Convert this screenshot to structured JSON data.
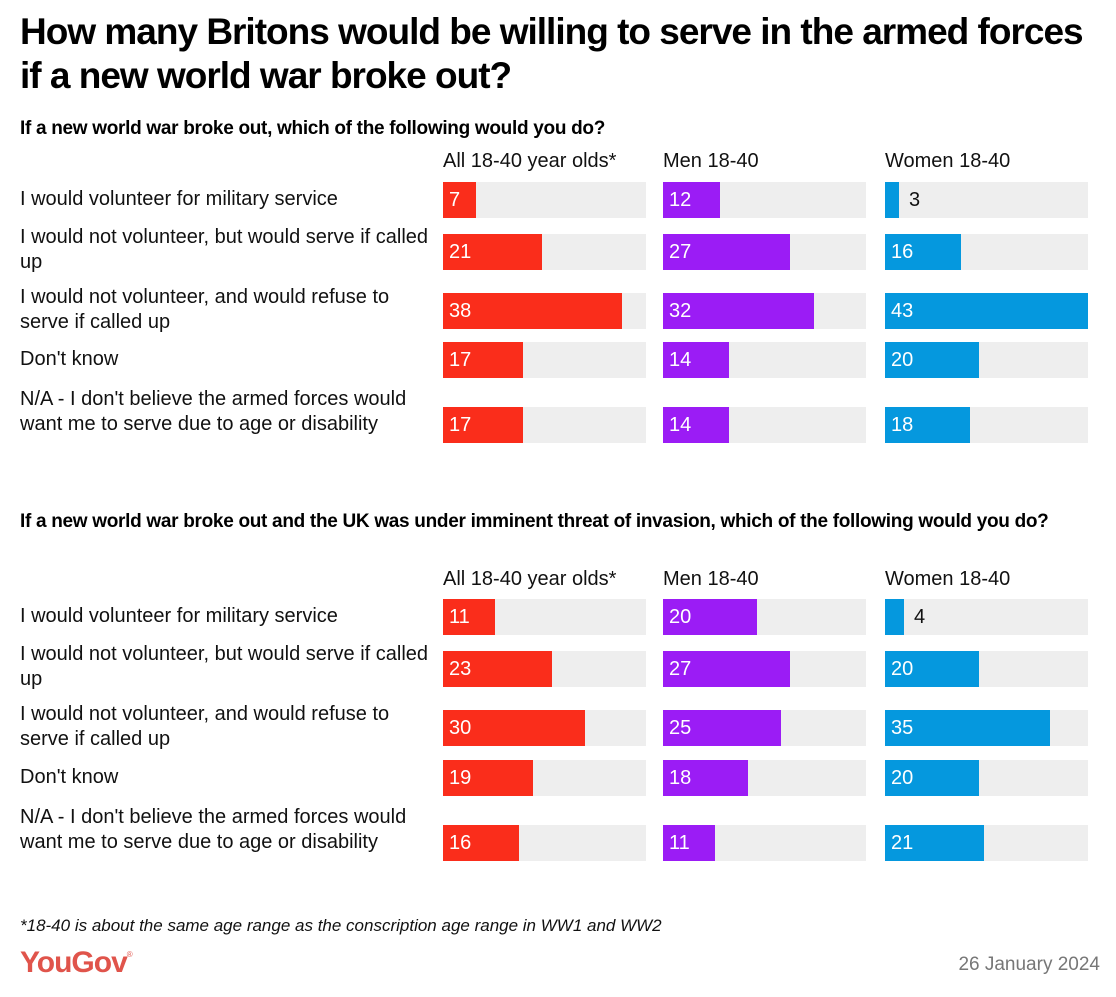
{
  "title": "How many Britons would be willing to serve in the armed forces if a new world war broke out?",
  "footnote": "*18-40 is about the same age range as the conscription age range in WW1 and WW2",
  "brand": "YouGov",
  "date": "26 January 2024",
  "colors": {
    "all": "#fa2d1b",
    "men": "#9b1cf5",
    "women": "#0598de",
    "track": "#eeeeee"
  },
  "chart_data": [
    {
      "type": "bar",
      "title": "If a new world war broke out, which of the following would you do?",
      "xlim": [
        0,
        43
      ],
      "groups": [
        "All 18-40 year olds*",
        "Men 18-40",
        "Women 18-40"
      ],
      "categories": [
        "I would volunteer for military service",
        "I would not volunteer, but would serve if called up",
        "I would not volunteer, and would refuse to serve if called up",
        "Don't know",
        "N/A - I don't believe the armed forces would want me to serve due to age or disability"
      ],
      "series": [
        {
          "name": "All 18-40 year olds*",
          "values": [
            7,
            21,
            38,
            17,
            17
          ]
        },
        {
          "name": "Men 18-40",
          "values": [
            12,
            27,
            32,
            14,
            14
          ]
        },
        {
          "name": "Women 18-40",
          "values": [
            3,
            16,
            43,
            20,
            18
          ]
        }
      ]
    },
    {
      "type": "bar",
      "title": "If a new world war broke out and the UK was under imminent threat of invasion, which of the following would you do?",
      "xlim": [
        0,
        43
      ],
      "groups": [
        "All 18-40 year olds*",
        "Men 18-40",
        "Women 18-40"
      ],
      "categories": [
        "I would volunteer for military service",
        "I would not volunteer, but would serve if called up",
        "I would not volunteer, and would refuse to serve if called up",
        "Don't know",
        "N/A - I don't believe the armed forces would want me to serve due to age or disability"
      ],
      "series": [
        {
          "name": "All 18-40 year olds*",
          "values": [
            11,
            23,
            30,
            19,
            16
          ]
        },
        {
          "name": "Men 18-40",
          "values": [
            20,
            27,
            25,
            18,
            11
          ]
        },
        {
          "name": "Women 18-40",
          "values": [
            4,
            20,
            35,
            20,
            21
          ]
        }
      ]
    }
  ]
}
